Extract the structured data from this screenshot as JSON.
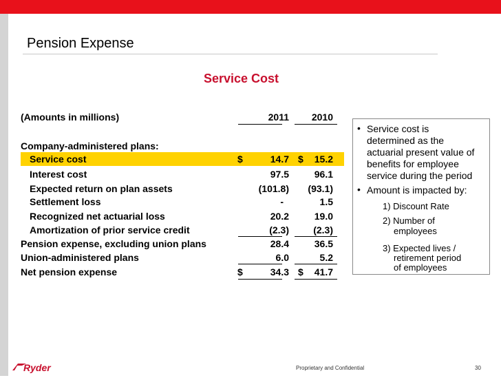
{
  "slide": {
    "title": "Pension Expense",
    "subtitle": "Service Cost"
  },
  "table": {
    "header": {
      "label": "(Amounts in millions)",
      "col1": "2011",
      "col2": "2010"
    },
    "section_label": "Company-administered plans:",
    "rows": [
      {
        "label": "Service cost",
        "sym1": "$",
        "v1": "14.7",
        "sym2": "$",
        "v2": "15.2"
      },
      {
        "label": "Interest cost",
        "v1": "97.5",
        "v2": "96.1"
      },
      {
        "label": "Expected return on plan assets",
        "v1": "(101.8)",
        "v2": "(93.1)"
      },
      {
        "label": "Settlement loss",
        "v1": "-",
        "v2": "1.5"
      },
      {
        "label": "Recognized net actuarial loss",
        "v1": "20.2",
        "v2": "19.0"
      },
      {
        "label": "Amortization of prior service credit",
        "v1": "(2.3)",
        "v2": "(2.3)"
      },
      {
        "label": "Pension expense, excluding union plans",
        "v1": "28.4",
        "v2": "36.5"
      },
      {
        "label": "Union-administered plans",
        "v1": "6.0",
        "v2": "5.2"
      },
      {
        "label": "Net pension expense",
        "sym1": "$",
        "v1": "34.3",
        "sym2": "$",
        "v2": "41.7"
      }
    ]
  },
  "notes": {
    "bullet1": [
      "Service cost is",
      "determined as the",
      "actuarial present value of",
      "benefits for employee",
      "service during the period"
    ],
    "bullet2": "Amount is impacted by:",
    "items": [
      "1) Discount Rate",
      "2) Number of",
      "employees",
      "3) Expected lives /",
      "retirement period",
      "of  employees"
    ]
  },
  "footer": {
    "logo_text": "Ryder",
    "text": "Proprietary and Confidential",
    "page": "30"
  },
  "colors": {
    "brand_red": "#e8111b",
    "subtitle_red": "#c8102e",
    "highlight": "#ffd200"
  }
}
